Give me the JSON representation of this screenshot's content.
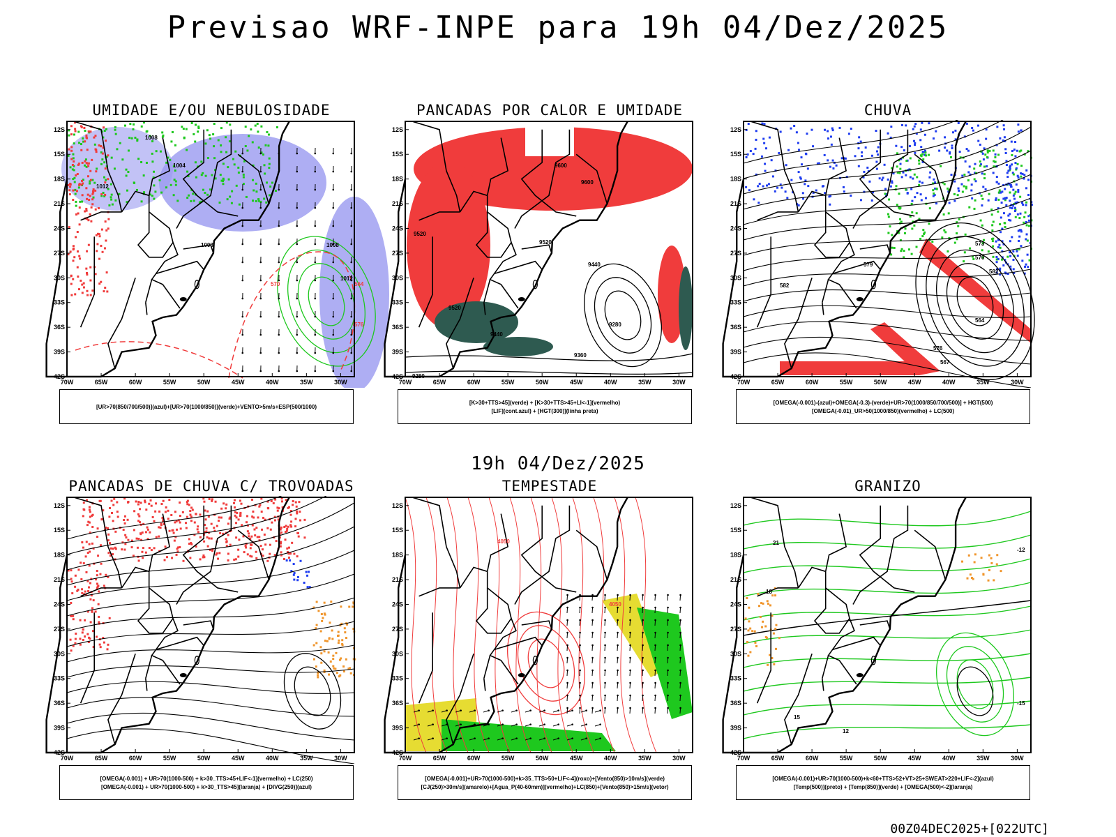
{
  "header": {
    "title": "Previsao WRF-INPE  para 19h 04/Dez/2025"
  },
  "mid_date": "19h 04/Dez/2025",
  "footer": {
    "run_id": "00Z04DEC2025+[022UTC]"
  },
  "axes": {
    "lat_labels": [
      "12S",
      "15S",
      "18S",
      "21S",
      "24S",
      "27S",
      "30S",
      "33S",
      "36S",
      "39S",
      "42S"
    ],
    "lon_labels": [
      "70W",
      "65W",
      "60W",
      "55W",
      "50W",
      "45W",
      "40W",
      "35W",
      "30W"
    ]
  },
  "panels": [
    {
      "title": "UMIDADE E/OU NEBULOSIDADE",
      "legend": [
        "[UR>70(850/700/500)](azul)+[UR>70(1000/850)](verde)+VENTO>5m/s+ESP(500/1000)"
      ],
      "contour_labels": [
        "1008",
        "1004",
        "1008",
        "1012",
        "1008",
        "1012",
        "576",
        "570",
        "564"
      ]
    },
    {
      "title": "PANCADAS POR CALOR E UMIDADE",
      "legend": [
        "[K>30+TTS>45](verde) + [K>30+TTS>45+LI<-1](vermelho)",
        "[LIF](cont.azul) + [HGT(300)](linha preta)"
      ],
      "contour_labels": [
        "9600",
        "9600",
        "9520",
        "9440",
        "9520",
        "9360",
        "9280",
        "9280",
        "9440",
        "9520"
      ]
    },
    {
      "title": "CHUVA",
      "legend": [
        "[OMEGA(-0.001)-(azul)+OMEGA(-0.3)-(verde)+UR>70(1000/850/700/500)] + HGT(500)",
        "[OMEGA(-0.01)_UR>50(1000/850)(vermelho) + LC(500)"
      ],
      "contour_labels": [
        "582",
        "579",
        "576",
        "573",
        "570",
        "567",
        "564",
        "582"
      ]
    },
    {
      "title": "PANCADAS DE CHUVA C/ TROVOADAS",
      "legend": [
        "[OMEGA(-0.001) + UR>70(1000-500) + k>30_TTS>45+LIF<-1](vermelho) + LC(250)",
        "[OMEGA(-0.001) + UR>70(1000-500) + k>30_TTS>45](laranja) + [DIVG(250)](azul)"
      ],
      "contour_labels": []
    },
    {
      "title": "TEMPESTADE",
      "legend": [
        "[OMEGA(-0.001)+UR>70(1000-500)+k>35_TTS>50+LIF<-4](roxo)+[Vento(850)>10m/s](verde)",
        "[CJ(250)>30m/s](amarelo)+[Agua_P(40-60mm)](vermelho)+LC(850)+[Vento(850)>15m/s](vetor)"
      ],
      "contour_labels": [
        "4050",
        "4050"
      ]
    },
    {
      "title": "GRANIZO",
      "legend": [
        "[OMEGA(-0.001)+UR>70(1000-500)+k<60+TTS>52+VT>25+SWEAT>220+LIF<-2](azul)",
        "[Temp(500)](preto) + [Temp(850)](verde) + [OMEGA(500)<-2](laranja)"
      ],
      "contour_labels": [
        "12",
        "15",
        "18",
        "21",
        "-12",
        "-15"
      ]
    }
  ],
  "colors": {
    "blue": "#1f3df0",
    "lightblue": "#9a9af0",
    "green": "#1ec81e",
    "red": "#f03c3c",
    "orange": "#f0962d",
    "yellow": "#e6dc32",
    "darkgreen": "#2e5a50",
    "black": "#000000"
  }
}
